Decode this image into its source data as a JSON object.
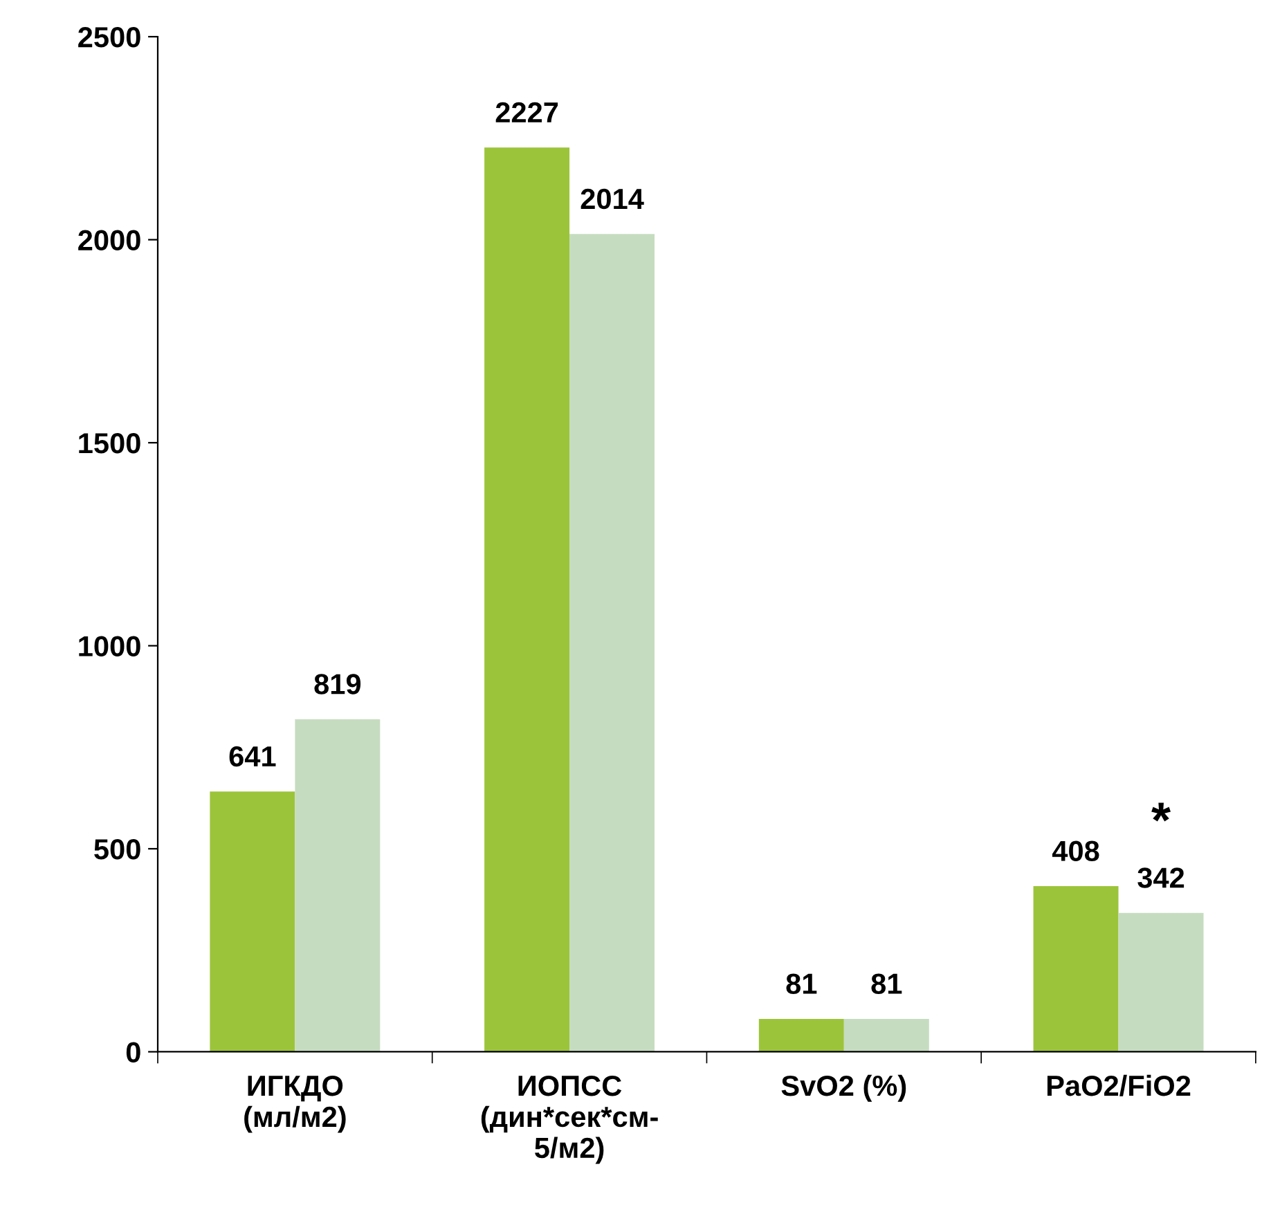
{
  "chart_data": {
    "type": "bar",
    "categories": [
      "ИГКДО\n(мл/м2)",
      "ИОПСС\n(дин*сек*см-\n5/м2)",
      "SvO2 (%)",
      "PaO2/FiO2"
    ],
    "series": [
      {
        "color": "#9cc43a",
        "values": [
          641,
          2227,
          81,
          408
        ]
      },
      {
        "color": "#c6dcc0",
        "values": [
          819,
          2014,
          81,
          342
        ]
      }
    ],
    "data_labels": true,
    "annotations": [
      "*"
    ],
    "ylim": [
      0,
      2500
    ],
    "yticks": [
      0,
      500,
      1000,
      1500,
      2000,
      2500
    ],
    "grid": false,
    "legend": false
  }
}
